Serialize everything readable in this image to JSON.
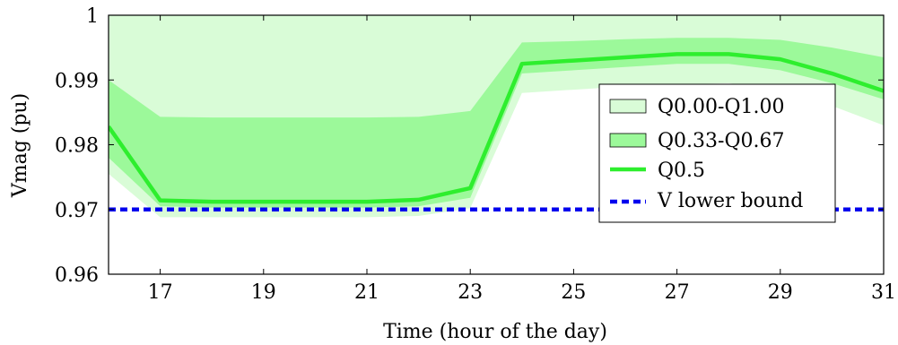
{
  "chart_data": {
    "type": "area",
    "xlabel": "Time (hour of the day)",
    "ylabel": "Vmag (pu)",
    "xlim": [
      16,
      31
    ],
    "ylim": [
      0.96,
      1.0
    ],
    "xticks": [
      17,
      19,
      21,
      23,
      25,
      27,
      29,
      31
    ],
    "yticks": [
      0.96,
      0.97,
      0.98,
      0.99,
      1.0
    ],
    "ytick_labels": [
      "0.96",
      "0.97",
      "0.98",
      "0.99",
      "1"
    ],
    "x": [
      16,
      17,
      18,
      19,
      20,
      21,
      22,
      23,
      24,
      25,
      26,
      27,
      28,
      29,
      30,
      31
    ],
    "bands": [
      {
        "name": "Q0.00-Q1.00",
        "color": "#d9fcd7",
        "lower": [
          0.9755,
          0.9688,
          0.9688,
          0.9688,
          0.9688,
          0.9688,
          0.969,
          0.9702,
          0.988,
          0.9885,
          0.989,
          0.9893,
          0.9895,
          0.9885,
          0.986,
          0.983
        ],
        "upper": [
          1.0,
          1.0,
          1.0,
          1.0,
          1.0,
          1.0,
          1.0,
          1.0,
          1.0,
          1.0,
          1.0,
          1.0,
          1.0,
          1.0,
          1.0,
          1.0
        ]
      },
      {
        "name": "Q0.33-Q0.67",
        "color": "#9cf99a",
        "lower": [
          0.978,
          0.9705,
          0.9703,
          0.9703,
          0.9703,
          0.9703,
          0.9705,
          0.9718,
          0.991,
          0.9915,
          0.992,
          0.9925,
          0.9925,
          0.9915,
          0.9895,
          0.987
        ],
        "upper": [
          0.99,
          0.9843,
          0.9842,
          0.9842,
          0.9842,
          0.9842,
          0.9843,
          0.9852,
          0.9958,
          0.996,
          0.9963,
          0.9965,
          0.9965,
          0.9962,
          0.995,
          0.9935
        ]
      }
    ],
    "series": [
      {
        "name": "Q0.5",
        "color": "#2eee2e",
        "style": "solid",
        "values": [
          0.9828,
          0.9714,
          0.9712,
          0.9712,
          0.9712,
          0.9712,
          0.9715,
          0.9733,
          0.9925,
          0.993,
          0.9935,
          0.994,
          0.994,
          0.9932,
          0.991,
          0.9883
        ]
      },
      {
        "name": "V lower bound",
        "color": "#0000ee",
        "style": "dashed",
        "values": [
          0.97,
          0.97,
          0.97,
          0.97,
          0.97,
          0.97,
          0.97,
          0.97,
          0.97,
          0.97,
          0.97,
          0.97,
          0.97,
          0.97,
          0.97,
          0.97
        ]
      }
    ],
    "legend": {
      "position": "right",
      "entries": [
        "Q0.00-Q1.00",
        "Q0.33-Q0.67",
        "Q0.5",
        "V lower bound"
      ]
    },
    "grid": false
  }
}
